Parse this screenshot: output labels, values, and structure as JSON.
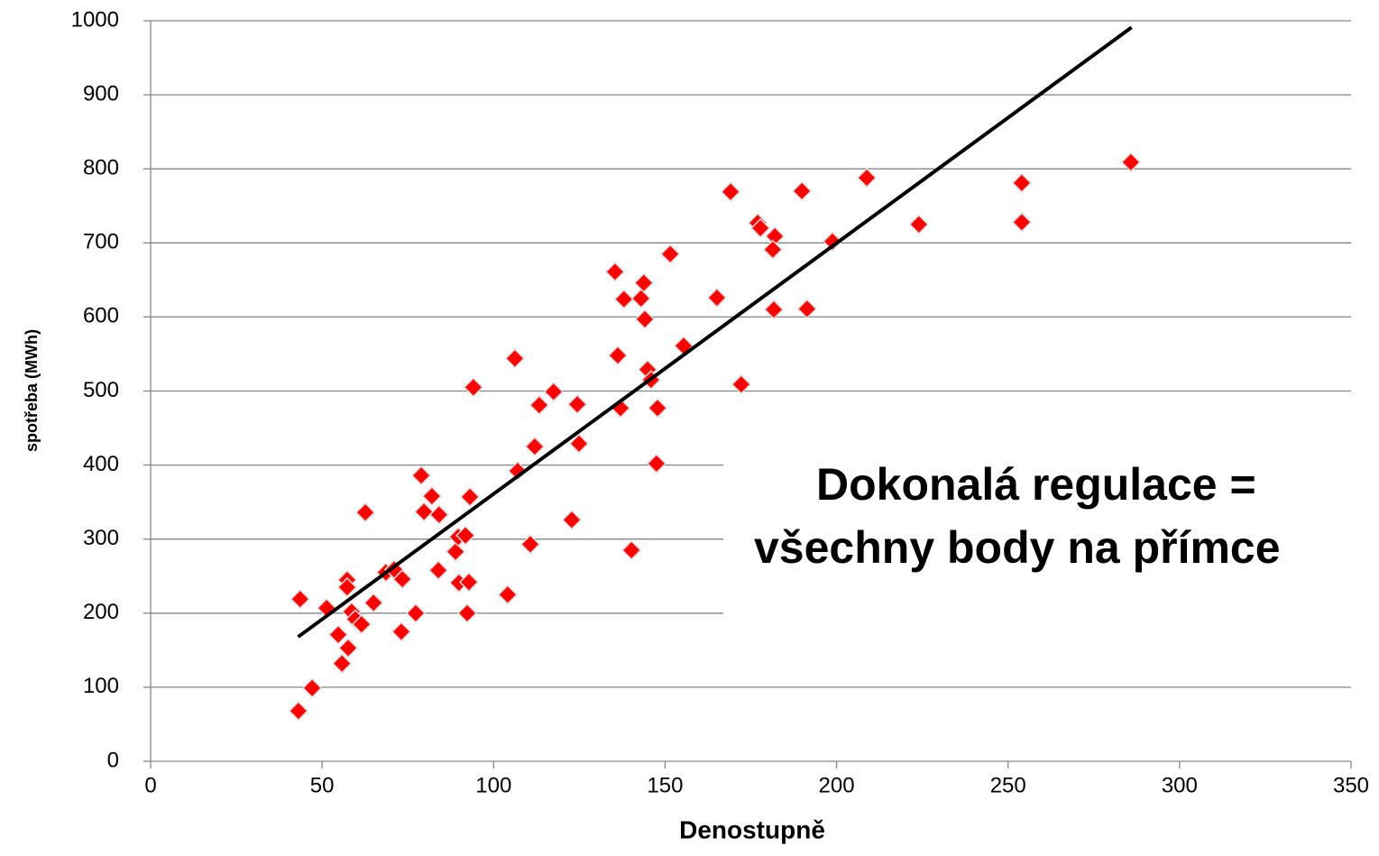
{
  "chart_data": {
    "type": "scatter",
    "x_label": "Denostupně",
    "y_label": "spotřeba  (MWh)",
    "annotation": [
      "Dokonalá regulace =",
      "všechny body na přímce"
    ],
    "xlim": [
      0,
      350
    ],
    "xticks": [
      0,
      50,
      100,
      150,
      200,
      250,
      300,
      350
    ],
    "ylim": [
      0,
      1000
    ],
    "yticks": [
      0,
      100,
      200,
      300,
      400,
      500,
      600,
      700,
      800,
      900,
      1000
    ],
    "grid": true,
    "color": "#ff0000",
    "annotation_color": "#ff0000",
    "x": [
      43.6,
      43.1,
      47.1,
      51.3,
      54.7,
      55.8,
      57.3,
      57.3,
      57.6,
      58.6,
      59.7,
      61.5,
      62.6,
      65,
      68.6,
      71,
      73.4,
      73.1,
      77.3,
      78.9,
      79.7,
      82,
      84.1,
      83.9,
      88.9,
      89.7,
      89.9,
      91.8,
      92.3,
      92.8,
      93.1,
      94.1,
      104.1,
      106.2,
      107,
      110.7,
      112,
      113.3,
      117.5,
      122.8,
      124.4,
      124.9,
      135.4,
      136.2,
      137,
      138,
      140.2,
      143,
      143.8,
      144.1,
      144.9,
      145.9,
      147.8,
      147.5,
      151.5,
      155.4,
      165.1,
      169.1,
      172.2,
      177,
      177.8,
      182,
      181.4,
      181.7,
      189.9,
      191.4,
      198.8,
      208.8,
      224,
      254,
      254,
      285.8
    ],
    "values": [
      219,
      68,
      99,
      207,
      171,
      132,
      245,
      235,
      153,
      202,
      192,
      185,
      336,
      214,
      255,
      259,
      246,
      175,
      200,
      386,
      337,
      358,
      333,
      258,
      283,
      303,
      241,
      305,
      200,
      242,
      357,
      505,
      225,
      544,
      392,
      293,
      425,
      481,
      499,
      326,
      482,
      429,
      661,
      548,
      477,
      624,
      285,
      625,
      646,
      597,
      529,
      515,
      477,
      402,
      685,
      561,
      626,
      769,
      509,
      727,
      720,
      709,
      691,
      610,
      770,
      611,
      702,
      788,
      725,
      781,
      728,
      809
    ],
    "trendline": {
      "x": [
        43,
        286
      ],
      "values": [
        168,
        991
      ],
      "color": "#000000"
    }
  }
}
